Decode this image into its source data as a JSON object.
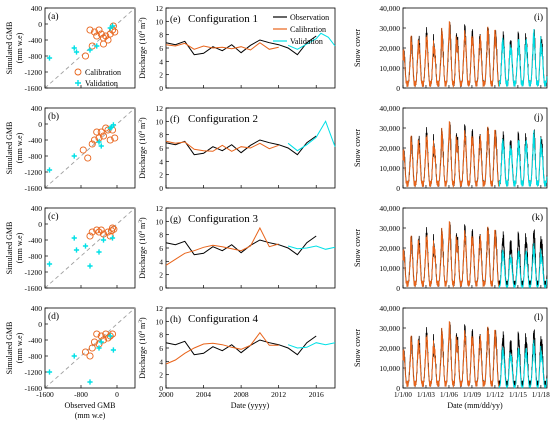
{
  "colors": {
    "observation": "#000000",
    "calibration": "#e8641b",
    "validation": "#00e0e6",
    "identity_line": "#a0a0a0",
    "axis": "#000000"
  },
  "chart_data": [
    {
      "id": "gmb",
      "type": "scatter",
      "xlabel": "Observed GMB",
      "xlabel_unit": "(mm w.e)",
      "ylabel": "Simulated GMB",
      "ylabel_unit": "(mm w.e)",
      "xlim": [
        -1600,
        400
      ],
      "ylim": [
        -1600,
        400
      ],
      "xticks": [
        "-1600",
        "-800",
        "0"
      ],
      "yticks": [
        "400",
        "0",
        "-400",
        "-800",
        "-1200",
        "-1600"
      ],
      "legend": {
        "calibration": "Calibration",
        "validation": "Validation",
        "placement": "bottom-right",
        "panel": 0
      },
      "panels": [
        {
          "label": "(a)",
          "calibration": [
            [
              -600,
              -150
            ],
            [
              -500,
              -200
            ],
            [
              -450,
              -300
            ],
            [
              -400,
              -150
            ],
            [
              -350,
              -250
            ],
            [
              -300,
              -350
            ],
            [
              -250,
              -300
            ],
            [
              -200,
              -400
            ],
            [
              -150,
              -250
            ],
            [
              -100,
              -150
            ],
            [
              -80,
              -50
            ],
            [
              -50,
              -200
            ],
            [
              -700,
              -800
            ],
            [
              -550,
              -550
            ],
            [
              -300,
              -500
            ]
          ],
          "validation": [
            [
              -1500,
              -850
            ],
            [
              -950,
              -600
            ],
            [
              -900,
              -700
            ],
            [
              -600,
              -650
            ],
            [
              -450,
              -550
            ],
            [
              -150,
              -100
            ],
            [
              -100,
              -50
            ]
          ]
        },
        {
          "label": "(b)",
          "calibration": [
            [
              -750,
              -650
            ],
            [
              -500,
              -400
            ],
            [
              -450,
              -200
            ],
            [
              -400,
              -350
            ],
            [
              -350,
              -200
            ],
            [
              -300,
              -300
            ],
            [
              -250,
              -100
            ],
            [
              -200,
              -150
            ],
            [
              -150,
              -400
            ],
            [
              -100,
              -150
            ],
            [
              -50,
              -350
            ],
            [
              -650,
              -850
            ],
            [
              -550,
              -500
            ]
          ],
          "validation": [
            [
              -1500,
              -1150
            ],
            [
              -950,
              -800
            ],
            [
              -400,
              -450
            ],
            [
              -350,
              -550
            ],
            [
              -150,
              -100
            ],
            [
              -80,
              -20
            ],
            [
              -120,
              -80
            ]
          ]
        },
        {
          "label": "(c)",
          "calibration": [
            [
              -600,
              -300
            ],
            [
              -550,
              -200
            ],
            [
              -450,
              -150
            ],
            [
              -400,
              -200
            ],
            [
              -350,
              -150
            ],
            [
              -300,
              -250
            ],
            [
              -200,
              -200
            ],
            [
              -150,
              -300
            ],
            [
              -100,
              -100
            ],
            [
              -70,
              -130
            ],
            [
              -120,
              -170
            ]
          ],
          "validation": [
            [
              -1500,
              -1000
            ],
            [
              -950,
              -350
            ],
            [
              -900,
              -650
            ],
            [
              -600,
              -1050
            ],
            [
              -400,
              -700
            ],
            [
              -300,
              -400
            ],
            [
              -100,
              -350
            ],
            [
              -700,
              -550
            ]
          ]
        },
        {
          "label": "(d)",
          "calibration": [
            [
              -700,
              -700
            ],
            [
              -500,
              -450
            ],
            [
              -450,
              -250
            ],
            [
              -400,
              -500
            ],
            [
              -350,
              -300
            ],
            [
              -300,
              -400
            ],
            [
              -250,
              -250
            ],
            [
              -200,
              -350
            ],
            [
              -150,
              -300
            ],
            [
              -100,
              -250
            ],
            [
              -600,
              -800
            ],
            [
              -550,
              -600
            ]
          ],
          "validation": [
            [
              -1500,
              -1200
            ],
            [
              -950,
              -800
            ],
            [
              -600,
              -1450
            ],
            [
              -400,
              -600
            ],
            [
              -350,
              -450
            ],
            [
              -150,
              -300
            ],
            [
              -80,
              -650
            ]
          ]
        }
      ]
    },
    {
      "id": "discharge",
      "type": "line",
      "xlabel": "Date (yyyy)",
      "ylabel": "Discharge (10",
      "ylabel_sup": "9",
      "ylabel_end": " m",
      "ylabel_sup2": "3",
      "ylabel_close": ")",
      "xlim": [
        2000,
        2018
      ],
      "ylim": [
        0,
        12
      ],
      "xticks": [
        "2000",
        "2004",
        "2008",
        "2012",
        "2016"
      ],
      "yticks": [
        "0",
        "2",
        "4",
        "6",
        "8",
        "10",
        "12"
      ],
      "legend": {
        "observation": "Observation",
        "calibration": "Calibration",
        "validation": "Validation",
        "placement": "top-right",
        "panel": 0
      },
      "observation": [
        [
          2000,
          6.8
        ],
        [
          2001,
          6.5
        ],
        [
          2002,
          7.0
        ],
        [
          2003,
          5.0
        ],
        [
          2004,
          5.2
        ],
        [
          2005,
          6.2
        ],
        [
          2006,
          5.6
        ],
        [
          2007,
          6.5
        ],
        [
          2008,
          5.3
        ],
        [
          2009,
          6.4
        ],
        [
          2010,
          7.2
        ],
        [
          2011,
          6.8
        ],
        [
          2012,
          6.5
        ],
        [
          2013,
          6.0
        ],
        [
          2014,
          5.0
        ],
        [
          2015,
          6.8
        ],
        [
          2016,
          7.8
        ]
      ],
      "panels": [
        {
          "label": "(e)",
          "title": "Configuration 1",
          "calibration": [
            [
              2000,
              6.5
            ],
            [
              2001,
              6.3
            ],
            [
              2002,
              6.7
            ],
            [
              2003,
              5.8
            ],
            [
              2004,
              6.3
            ],
            [
              2005,
              6.0
            ],
            [
              2006,
              6.1
            ],
            [
              2007,
              5.9
            ],
            [
              2008,
              6.2
            ],
            [
              2009,
              5.7
            ],
            [
              2010,
              6.8
            ],
            [
              2011,
              5.8
            ],
            [
              2012,
              6.1
            ]
          ],
          "validation": [
            [
              2013,
              6.4
            ],
            [
              2014,
              5.8
            ],
            [
              2015,
              6.6
            ],
            [
              2016,
              7.4
            ],
            [
              2016.5,
              8.2
            ],
            [
              2017.3,
              7.6
            ],
            [
              2018,
              6.3
            ]
          ]
        },
        {
          "label": "(f)",
          "title": "Configuration 2",
          "calibration": [
            [
              2000,
              7.0
            ],
            [
              2001,
              6.7
            ],
            [
              2002,
              6.9
            ],
            [
              2003,
              5.8
            ],
            [
              2004,
              5.6
            ],
            [
              2005,
              5.5
            ],
            [
              2006,
              6.4
            ],
            [
              2007,
              5.5
            ],
            [
              2008,
              6.2
            ],
            [
              2009,
              6.0
            ],
            [
              2010,
              6.7
            ],
            [
              2011,
              5.9
            ],
            [
              2012,
              6.4
            ]
          ],
          "validation": [
            [
              2013,
              6.7
            ],
            [
              2014,
              5.6
            ],
            [
              2015,
              6.5
            ],
            [
              2016,
              7.6
            ],
            [
              2017,
              10.0
            ],
            [
              2018,
              6.2
            ]
          ]
        },
        {
          "label": "(g)",
          "title": "Configuration 3",
          "calibration": [
            [
              2000,
              3.4
            ],
            [
              2001,
              4.3
            ],
            [
              2002,
              5.2
            ],
            [
              2003,
              5.6
            ],
            [
              2004,
              6.1
            ],
            [
              2005,
              6.4
            ],
            [
              2006,
              6.2
            ],
            [
              2007,
              5.9
            ],
            [
              2008,
              5.6
            ],
            [
              2009,
              6.3
            ],
            [
              2010,
              9.0
            ],
            [
              2011,
              6.2
            ],
            [
              2012,
              6.6
            ]
          ],
          "validation": [
            [
              2013,
              6.3
            ],
            [
              2014,
              5.9
            ],
            [
              2015,
              6.0
            ],
            [
              2016,
              6.3
            ],
            [
              2017,
              5.8
            ],
            [
              2018,
              6.1
            ]
          ]
        },
        {
          "label": "(h)",
          "title": "Configuration 4",
          "calibration": [
            [
              2000,
              3.6
            ],
            [
              2001,
              4.2
            ],
            [
              2002,
              5.2
            ],
            [
              2003,
              6.0
            ],
            [
              2004,
              6.6
            ],
            [
              2005,
              6.7
            ],
            [
              2006,
              6.5
            ],
            [
              2007,
              6.1
            ],
            [
              2008,
              5.8
            ],
            [
              2009,
              6.4
            ],
            [
              2010,
              8.3
            ],
            [
              2011,
              6.4
            ],
            [
              2012,
              6.4
            ]
          ],
          "validation": [
            [
              2013,
              6.5
            ],
            [
              2014,
              6.0
            ],
            [
              2015,
              6.1
            ],
            [
              2016,
              6.8
            ],
            [
              2017,
              6.5
            ],
            [
              2018,
              6.8
            ]
          ]
        }
      ]
    },
    {
      "id": "snow",
      "type": "line",
      "xlabel": "Date (mm/dd/yy)",
      "ylabel": "Snow cover",
      "xlim": [
        2000,
        2018.8
      ],
      "ylim": [
        0,
        40000
      ],
      "xticks": [
        "1/1/00",
        "1/1/03",
        "1/1/06",
        "1/1/09",
        "1/1/12",
        "1/1/15",
        "1/1/18"
      ],
      "xtick_values": [
        2000,
        2003,
        2006,
        2009,
        2012,
        2015,
        2018
      ],
      "yticks": [
        "0",
        "10,000",
        "20,000",
        "30,000",
        "40,000"
      ],
      "split_year": 2012.5,
      "observation_peaks": [
        18000,
        24000,
        22000,
        26000,
        20000,
        27000,
        30000,
        23000,
        28000,
        25000,
        24000,
        29000,
        26000,
        24000,
        21000,
        25000,
        23000,
        27000,
        22000
      ],
      "panels": [
        {
          "label": "(i)",
          "sim_scale": 0.92,
          "sim_floor": 1.0
        },
        {
          "label": "(j)",
          "sim_scale": 0.9,
          "sim_floor": 1.0
        },
        {
          "label": "(k)",
          "sim_scale": 0.7,
          "sim_floor": 0.35
        },
        {
          "label": "(l)",
          "sim_scale": 0.75,
          "sim_floor": 0.3
        }
      ]
    }
  ]
}
